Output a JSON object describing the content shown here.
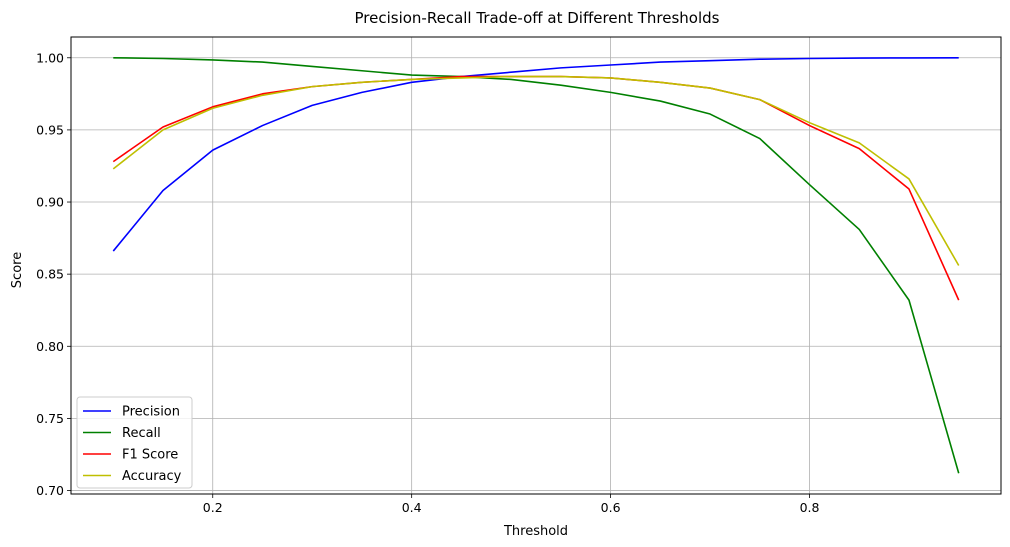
{
  "chart_data": {
    "type": "line",
    "title": "Precision-Recall Trade-off at Different Thresholds",
    "xlabel": "Threshold",
    "ylabel": "Score",
    "x": [
      0.1,
      0.15,
      0.2,
      0.25,
      0.3,
      0.35,
      0.4,
      0.45,
      0.5,
      0.55,
      0.6,
      0.65,
      0.7,
      0.75,
      0.8,
      0.85,
      0.9,
      0.95
    ],
    "xlim": [
      0.0575,
      0.9925
    ],
    "ylim": [
      0.6976,
      1.0144
    ],
    "xticks": [
      0.2,
      0.4,
      0.6,
      0.8
    ],
    "xtick_labels": [
      "0.2",
      "0.4",
      "0.6",
      "0.8"
    ],
    "yticks": [
      0.7,
      0.75,
      0.8,
      0.85,
      0.9,
      0.95,
      1.0
    ],
    "ytick_labels": [
      "0.70",
      "0.75",
      "0.80",
      "0.85",
      "0.90",
      "0.95",
      "1.00"
    ],
    "grid": true,
    "legend_position": "lower-left",
    "series": [
      {
        "name": "Precision",
        "color": "#0000ff",
        "values": [
          0.866,
          0.908,
          0.936,
          0.953,
          0.967,
          0.976,
          0.983,
          0.987,
          0.99,
          0.993,
          0.995,
          0.997,
          0.998,
          0.999,
          0.9995,
          0.9998,
          0.9999,
          1.0
        ]
      },
      {
        "name": "Recall",
        "color": "#008000",
        "values": [
          1.0,
          0.9995,
          0.9985,
          0.997,
          0.994,
          0.991,
          0.988,
          0.987,
          0.985,
          0.981,
          0.976,
          0.97,
          0.961,
          0.944,
          0.912,
          0.881,
          0.832,
          0.712
        ]
      },
      {
        "name": "F1 Score",
        "color": "#ff0000",
        "values": [
          0.928,
          0.952,
          0.966,
          0.975,
          0.98,
          0.983,
          0.985,
          0.987,
          0.987,
          0.987,
          0.986,
          0.983,
          0.979,
          0.971,
          0.953,
          0.937,
          0.909,
          0.832
        ]
      },
      {
        "name": "Accuracy",
        "color": "#bfbf00",
        "values": [
          0.923,
          0.95,
          0.965,
          0.974,
          0.98,
          0.983,
          0.985,
          0.986,
          0.987,
          0.987,
          0.986,
          0.983,
          0.979,
          0.971,
          0.955,
          0.941,
          0.916,
          0.856
        ]
      }
    ]
  }
}
